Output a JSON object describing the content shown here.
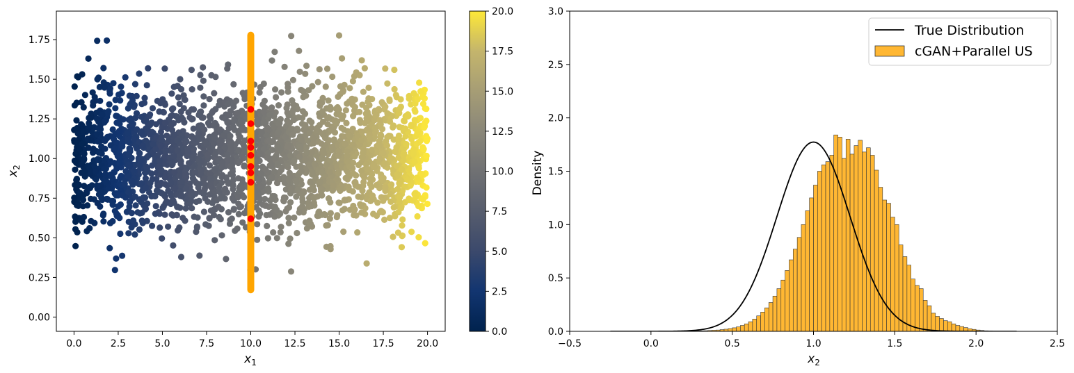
{
  "chart_data": [
    {
      "type": "scatter",
      "title": "",
      "xlabel": "x",
      "xlabel_sub": "1",
      "ylabel": "x",
      "ylabel_sub": "2",
      "xlim": [
        -1,
        21
      ],
      "ylim": [
        -0.09,
        1.93
      ],
      "xticks": [
        0,
        2.5,
        5,
        7.5,
        10,
        12.5,
        15,
        17.5,
        20
      ],
      "xtick_labels": [
        "0.0",
        "2.5",
        "5.0",
        "7.5",
        "10.0",
        "12.5",
        "15.0",
        "17.5",
        "20.0"
      ],
      "yticks": [
        0,
        0.25,
        0.5,
        0.75,
        1.0,
        1.25,
        1.5,
        1.75
      ],
      "ytick_labels": [
        "0.00",
        "0.25",
        "0.50",
        "0.75",
        "1.00",
        "1.25",
        "1.50",
        "1.75"
      ],
      "point_color_mapping": "cividis colormap by x1 value",
      "point_count": 2600,
      "point_distribution": "x1 uniform on [0, 20]; x2 normal, mean 1.0, sd 0.22",
      "seed": 7,
      "highlight_column": {
        "x": 10,
        "y_range": [
          0.15,
          1.8
        ],
        "color": "#ffa500"
      },
      "highlight_points": {
        "x": 10,
        "y": [
          0.62,
          0.85,
          0.91,
          0.95,
          1.02,
          1.07,
          1.11,
          1.22,
          1.31
        ],
        "color": "#ff0000"
      },
      "colorbar": {
        "colormap": "cividis",
        "range": [
          0,
          20
        ],
        "ticks": [
          0,
          2.5,
          5,
          7.5,
          10,
          12.5,
          15,
          17.5,
          20
        ],
        "tick_labels": [
          "0.0",
          "2.5",
          "5.0",
          "7.5",
          "10.0",
          "12.5",
          "15.0",
          "17.5",
          "20.0"
        ]
      }
    },
    {
      "type": "bar",
      "subtype": "histogram",
      "title": "",
      "xlabel": "x",
      "xlabel_sub": "2",
      "ylabel": "Density",
      "xlim": [
        -0.5,
        2.5
      ],
      "ylim": [
        0,
        3.0
      ],
      "xticks": [
        -0.5,
        0,
        0.5,
        1.0,
        1.5,
        2.0,
        2.5
      ],
      "xtick_labels": [
        "−0.5",
        "0.0",
        "0.5",
        "1.0",
        "1.5",
        "2.0",
        "2.5"
      ],
      "yticks": [
        0,
        0.5,
        1.0,
        1.5,
        2.0,
        2.5,
        3.0
      ],
      "ytick_labels": [
        "0.0",
        "0.5",
        "1.0",
        "1.5",
        "2.0",
        "2.5",
        "3.0"
      ],
      "histogram": {
        "name": "cGAN+Parallel US",
        "color": "#ffb733",
        "edge_color": "#333333",
        "bin_start": 0.25,
        "bin_width": 0.025,
        "values": [
          0.003,
          0.004,
          0.005,
          0.006,
          0.008,
          0.01,
          0.012,
          0.016,
          0.02,
          0.026,
          0.033,
          0.042,
          0.055,
          0.07,
          0.09,
          0.115,
          0.145,
          0.18,
          0.22,
          0.27,
          0.33,
          0.4,
          0.48,
          0.57,
          0.67,
          0.77,
          0.88,
          1.0,
          1.13,
          1.25,
          1.37,
          1.5,
          1.56,
          1.59,
          1.65,
          1.84,
          1.82,
          1.62,
          1.8,
          1.66,
          1.74,
          1.79,
          1.68,
          1.72,
          1.65,
          1.51,
          1.35,
          1.23,
          1.2,
          1.07,
          1.0,
          0.81,
          0.7,
          0.62,
          0.49,
          0.43,
          0.4,
          0.29,
          0.24,
          0.17,
          0.14,
          0.12,
          0.1,
          0.09,
          0.07,
          0.055,
          0.045,
          0.035,
          0.025,
          0.018,
          0.012,
          0.008,
          0.005,
          0.003
        ]
      },
      "curve": {
        "name": "True Distribution",
        "color": "#000000",
        "distribution": "normal",
        "mean": 1.0,
        "sd": 0.225,
        "x_range": [
          -0.25,
          2.25
        ]
      },
      "legend": {
        "position": "top-right",
        "entries": [
          "True Distribution",
          "cGAN+Parallel US"
        ]
      }
    }
  ]
}
